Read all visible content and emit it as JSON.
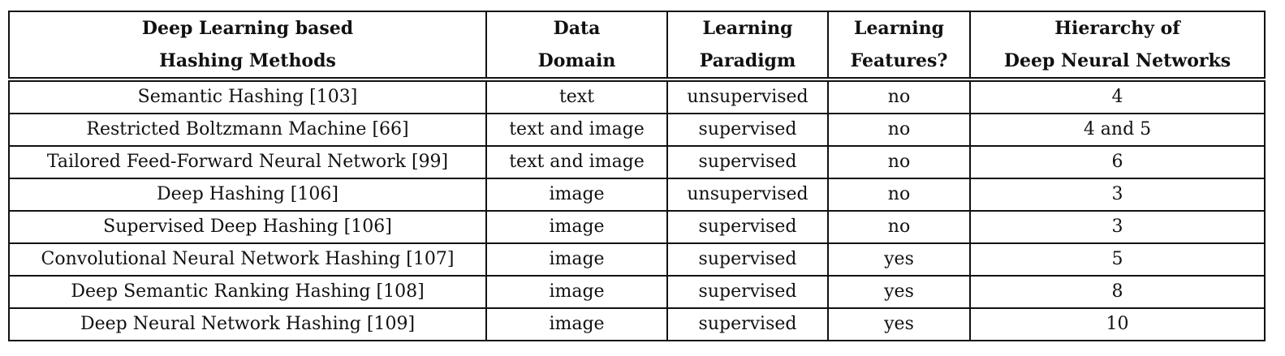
{
  "table": {
    "headers": [
      {
        "line1": "Deep Learning based",
        "line2": "Hashing Methods"
      },
      {
        "line1": "Data",
        "line2": "Domain"
      },
      {
        "line1": "Learning",
        "line2": "Paradigm"
      },
      {
        "line1": "Learning",
        "line2": "Features?"
      },
      {
        "line1": "Hierarchy of",
        "line2": "Deep Neural Networks"
      }
    ],
    "rows": [
      [
        "Semantic Hashing [103]",
        "text",
        "unsupervised",
        "no",
        "4"
      ],
      [
        "Restricted Boltzmann Machine [66]",
        "text and image",
        "supervised",
        "no",
        "4 and 5"
      ],
      [
        "Tailored Feed-Forward Neural Network [99]",
        "text and image",
        "supervised",
        "no",
        "6"
      ],
      [
        "Deep Hashing [106]",
        "image",
        "unsupervised",
        "no",
        "3"
      ],
      [
        "Supervised Deep Hashing [106]",
        "image",
        "supervised",
        "no",
        "3"
      ],
      [
        "Convolutional Neural Network Hashing [107]",
        "image",
        "supervised",
        "yes",
        "5"
      ],
      [
        "Deep Semantic Ranking Hashing [108]",
        "image",
        "supervised",
        "yes",
        "8"
      ],
      [
        "Deep Neural Network Hashing [109]",
        "image",
        "supervised",
        "yes",
        "10"
      ]
    ]
  }
}
